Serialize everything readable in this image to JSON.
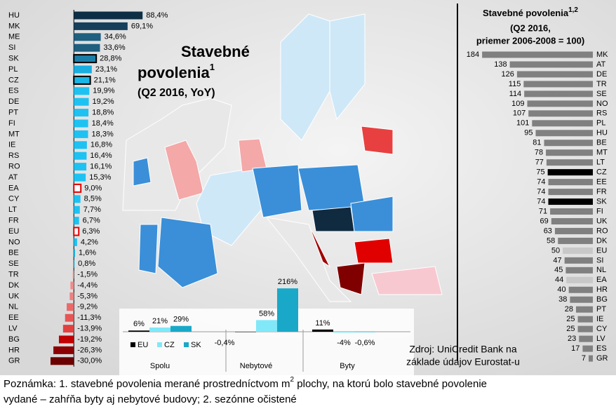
{
  "chart_data": [
    {
      "type": "hbar",
      "title_line1": "Stavebné",
      "title_line2": "povolenia",
      "title_sup": "1",
      "subtitle": "(Q2 2016, YoY)",
      "categories": [
        "HU",
        "MK",
        "ME",
        "SI",
        "SK",
        "PL",
        "CZ",
        "ES",
        "DE",
        "PT",
        "FI",
        "MT",
        "IE",
        "RS",
        "RO",
        "AT",
        "EA",
        "CY",
        "LT",
        "FR",
        "EU",
        "NO",
        "BE",
        "SE",
        "TR",
        "DK",
        "UK",
        "NL",
        "EE",
        "LV",
        "BG",
        "HR",
        "GR"
      ],
      "values": [
        88.4,
        69.1,
        34.6,
        33.6,
        28.8,
        23.1,
        21.1,
        19.9,
        19.2,
        18.8,
        18.4,
        18.3,
        16.8,
        16.4,
        16.1,
        15.3,
        9.0,
        8.5,
        7.7,
        6.7,
        6.3,
        4.2,
        1.6,
        0.8,
        -1.5,
        -4.4,
        -5.3,
        -9.2,
        -11.3,
        -13.9,
        -19.2,
        -26.3,
        -30.0
      ],
      "value_labels": [
        "88,4%",
        "69,1%",
        "34,6%",
        "33,6%",
        "28,8%",
        "23,1%",
        "21,1%",
        "19,9%",
        "19,2%",
        "18,8%",
        "18,4%",
        "18,3%",
        "16,8%",
        "16,4%",
        "16,1%",
        "15,3%",
        "9,0%",
        "8,5%",
        "7,7%",
        "6,7%",
        "6,3%",
        "4,2%",
        "1,6%",
        "0,8%",
        "-1,5%",
        "-4,4%",
        "-5,3%",
        "-9,2%",
        "-11,3%",
        "-13,9%",
        "-19,2%",
        "-26,3%",
        "-30,0%"
      ],
      "colors": [
        "#0d2f45",
        "#163f5b",
        "#1f5f80",
        "#1f5f80",
        "#1a7fa8",
        "#18aee0",
        "#18b6e6",
        "#1ec2f2",
        "#1ec2f2",
        "#1ec2f2",
        "#1ec2f2",
        "#1ec2f2",
        "#1ec2f2",
        "#1ec2f2",
        "#1ec2f2",
        "#1ec2f2",
        "#ffffff",
        "#1ec2f2",
        "#1ec2f2",
        "#1ec2f2",
        "#ffffff",
        "#1ec2f2",
        "#1ec2f2",
        "#1ec2f2",
        "#f4a0a0",
        "#f08c8c",
        "#ee8080",
        "#ea6a6a",
        "#e85555",
        "#e44040",
        "#c00000",
        "#8b0000",
        "#6b0000"
      ],
      "outlines": [
        null,
        null,
        null,
        null,
        "#000000",
        null,
        "#000000",
        null,
        null,
        null,
        null,
        null,
        null,
        null,
        null,
        null,
        "#e00000",
        null,
        null,
        null,
        "#e00000",
        null,
        null,
        null,
        null,
        null,
        null,
        null,
        null,
        null,
        null,
        null,
        null
      ],
      "xlim": [
        -30,
        90
      ]
    },
    {
      "type": "bar",
      "categories": [
        "Spolu",
        "Nebytové",
        "Byty"
      ],
      "series": [
        {
          "name": "EU",
          "color": "#000000",
          "values": [
            6,
            -0.4,
            11
          ],
          "value_labels": [
            "6%",
            "-0,4%",
            "11%"
          ]
        },
        {
          "name": "CZ",
          "color": "#80e8f8",
          "values": [
            21,
            58,
            -4
          ],
          "value_labels": [
            "21%",
            "58%",
            "-4%"
          ]
        },
        {
          "name": "SK",
          "color": "#1aa8c8",
          "values": [
            29,
            216,
            -0.6
          ],
          "value_labels": [
            "29%",
            "216%",
            "-0,6%"
          ]
        }
      ],
      "ylim": [
        -10,
        220
      ]
    },
    {
      "type": "hbar",
      "reversed": true,
      "title": "Stavebné povolenia",
      "title_sup": "1,2",
      "subtitle_line1": "(Q2 2016,",
      "subtitle_line2": "priemer 2006-2008 = 100)",
      "categories": [
        "MK",
        "AT",
        "DE",
        "TR",
        "SE",
        "NO",
        "RS",
        "PL",
        "HU",
        "BE",
        "MT",
        "LT",
        "CZ",
        "EE",
        "FR",
        "SK",
        "FI",
        "UK",
        "RO",
        "DK",
        "EU",
        "SI",
        "NL",
        "EA",
        "HR",
        "BG",
        "PT",
        "IE",
        "CY",
        "LV",
        "ES",
        "GR"
      ],
      "values": [
        184,
        138,
        126,
        115,
        114,
        109,
        107,
        101,
        95,
        81,
        78,
        77,
        75,
        74,
        74,
        74,
        71,
        69,
        63,
        58,
        50,
        47,
        45,
        44,
        40,
        38,
        28,
        25,
        25,
        23,
        17,
        7
      ],
      "colors": [
        "#808080",
        "#808080",
        "#808080",
        "#808080",
        "#808080",
        "#808080",
        "#808080",
        "#808080",
        "#808080",
        "#808080",
        "#808080",
        "#808080",
        "#000000",
        "#808080",
        "#808080",
        "#000000",
        "#808080",
        "#808080",
        "#808080",
        "#808080",
        "#c8c8c8",
        "#808080",
        "#808080",
        "#c8c8c8",
        "#808080",
        "#808080",
        "#808080",
        "#808080",
        "#808080",
        "#808080",
        "#808080",
        "#808080"
      ],
      "xlim": [
        0,
        190
      ]
    }
  ],
  "source": {
    "line1": "Zdroj: UniCredit Bank na",
    "line2": "základe údajov Eurostat-u"
  },
  "note": {
    "part1": "Poznámka: 1. stavebné povolenia merané prostredníctvom m",
    "sup": "2",
    "part2": " plochy, na ktorú bolo stavebné povolenie",
    "line2": "vydané – zahŕňa byty aj nebytové budovy; 2. sezónne očistené"
  }
}
